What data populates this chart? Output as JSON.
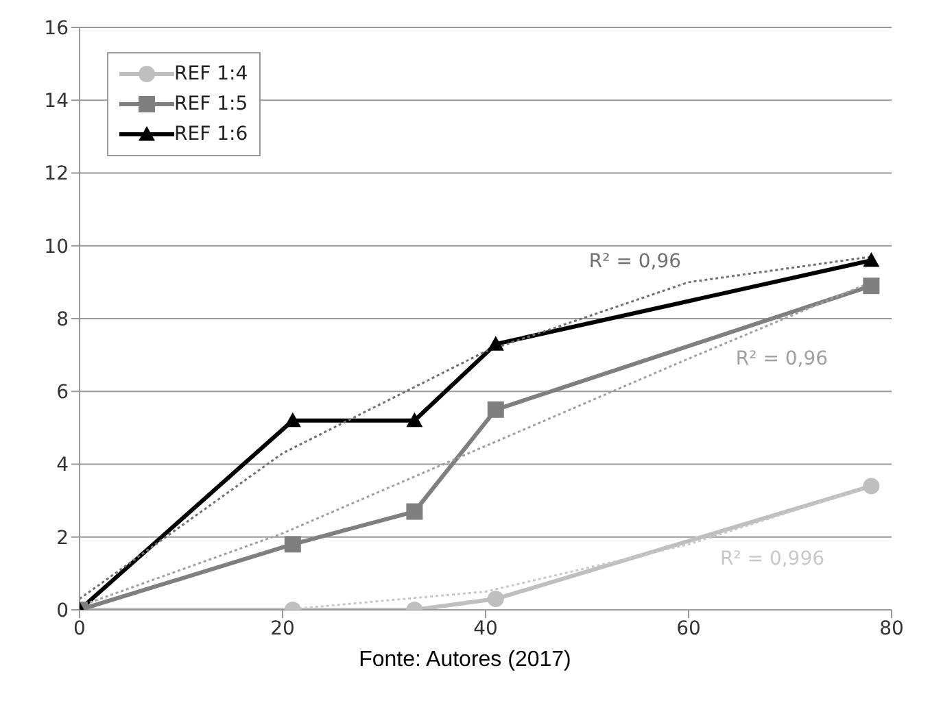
{
  "chart_data": {
    "type": "line",
    "x": [
      0,
      21,
      33,
      41,
      78
    ],
    "series": [
      {
        "name": "REF 1:4",
        "color": "#bfbfbf",
        "marker": "circle",
        "values": [
          0,
          0,
          0,
          0.3,
          3.4
        ]
      },
      {
        "name": "REF 1:5",
        "color": "#7f7f7f",
        "marker": "square",
        "values": [
          0,
          1.8,
          2.7,
          5.5,
          8.9
        ]
      },
      {
        "name": "REF 1:6",
        "color": "#000000",
        "marker": "triangle",
        "values": [
          0,
          5.2,
          5.2,
          7.3,
          9.6
        ]
      },
      {
        "type": "line",
        "color": "#c8c8c8",
        "line_style": "dotted",
        "marker": "none",
        "x": [
          0,
          20,
          40,
          60,
          78
        ],
        "values": [
          0,
          0,
          0.5,
          1.8,
          3.4
        ]
      },
      {
        "type": "line",
        "color": "#a0a0a0",
        "line_style": "dotted",
        "marker": "none",
        "x": [
          0,
          20,
          40,
          60,
          78
        ],
        "values": [
          0.1,
          2.1,
          4.5,
          6.9,
          9
        ]
      },
      {
        "type": "line",
        "color": "#707070",
        "line_style": "dotted",
        "marker": "none",
        "x": [
          0,
          20,
          40,
          60,
          78
        ],
        "values": [
          0.3,
          4.3,
          7.1,
          9,
          9.7
        ]
      }
    ],
    "xlim": [
      0,
      80
    ],
    "xticks": [
      0,
      20,
      40,
      60,
      80
    ],
    "ylim": [
      0,
      16
    ],
    "yticks": [
      0,
      2,
      4,
      6,
      8,
      10,
      12,
      14,
      16
    ],
    "grid": "y",
    "legend": "top left",
    "annotations": [
      "R² = 0,996",
      "R² = 0,96",
      "R² = 0,96",
      "Fonte: Autores (2017)"
    ]
  }
}
